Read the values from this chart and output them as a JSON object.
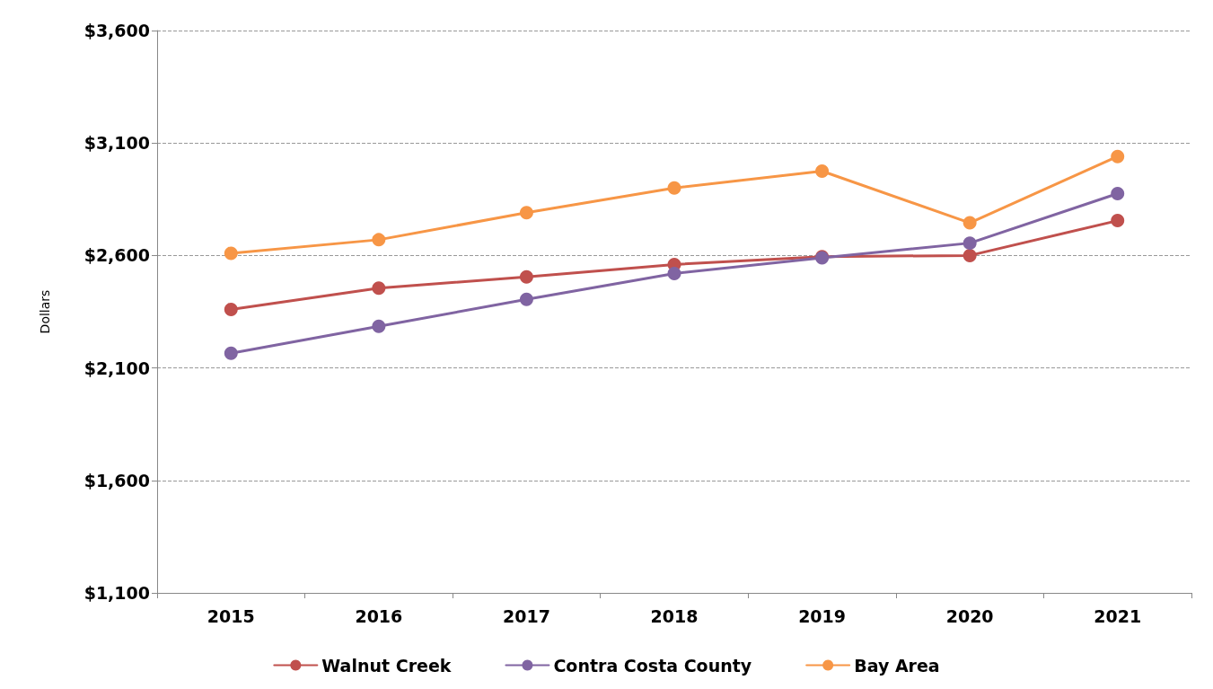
{
  "chart_data": {
    "type": "line",
    "ylabel": "Dollars",
    "categories": [
      "2015",
      "2016",
      "2017",
      "2018",
      "2019",
      "2020",
      "2021"
    ],
    "series": [
      {
        "name": "Walnut Creek",
        "color": "#c0504d",
        "values": [
          2360,
          2455,
          2505,
          2560,
          2595,
          2600,
          2755
        ]
      },
      {
        "name": "Contra Costa County",
        "color": "#8064a2",
        "values": [
          2165,
          2285,
          2405,
          2520,
          2590,
          2655,
          2875
        ]
      },
      {
        "name": "Bay Area",
        "color": "#f79646",
        "values": [
          2610,
          2670,
          2790,
          2900,
          2975,
          2745,
          3040
        ]
      }
    ],
    "ylim": [
      1100,
      3600
    ],
    "yticks": [
      {
        "value": 1100,
        "label": "$1,100"
      },
      {
        "value": 1600,
        "label": "$1,600"
      },
      {
        "value": 2100,
        "label": "$2,100"
      },
      {
        "value": 2600,
        "label": "$2,600"
      },
      {
        "value": 3100,
        "label": "$3,100"
      },
      {
        "value": 3600,
        "label": "$3,600"
      }
    ],
    "grid": "y",
    "legend": "bottom",
    "marker": "circle",
    "line_style": "solid"
  }
}
